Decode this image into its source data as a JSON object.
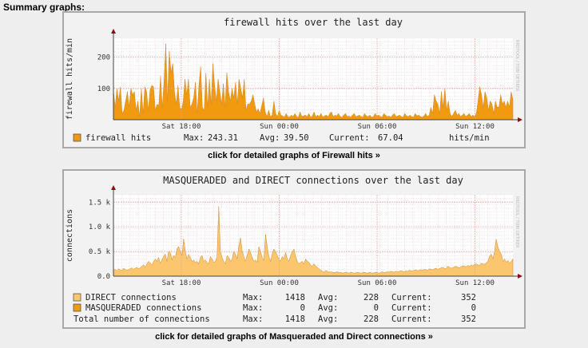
{
  "page": {
    "heading": "Summary graphs:"
  },
  "graph1": {
    "watermark": "RRDTOOL / TOBI OETIKER",
    "chart_data": {
      "type": "area",
      "title": "firewall hits over the last day",
      "ylabel": "firewall hits/min",
      "ylim": [
        0,
        260
      ],
      "yticks": [
        {
          "v": 100,
          "label": "100"
        },
        {
          "v": 200,
          "label": "200"
        }
      ],
      "xticks": [
        "Sat 18:00",
        "Sun 00:00",
        "Sun 06:00",
        "Sun 12:00"
      ],
      "grid": true,
      "series": [
        {
          "name": "firewall hits",
          "color": "#f19a10",
          "values": [
            95,
            40,
            100,
            60,
            105,
            20,
            30,
            60,
            90,
            40,
            100,
            80,
            90,
            30,
            60,
            10,
            100,
            20,
            105,
            90,
            30,
            95,
            110,
            105,
            30,
            50,
            45,
            140,
            40,
            120,
            243,
            60,
            220,
            150,
            180,
            90,
            50,
            110,
            40,
            30,
            60,
            130,
            80,
            130,
            40,
            50,
            70,
            120,
            20,
            110,
            170,
            40,
            30,
            150,
            40,
            130,
            50,
            180,
            110,
            60,
            130,
            90,
            50,
            115,
            40,
            150,
            90,
            60,
            100,
            70,
            120,
            50,
            130,
            100,
            70,
            130,
            30,
            50,
            50,
            60,
            80,
            50,
            25,
            35,
            20,
            45,
            70,
            25,
            10,
            30,
            10,
            15,
            60,
            20,
            10,
            30,
            15,
            12,
            8,
            20,
            10,
            8,
            15,
            10,
            20,
            10,
            8,
            25,
            10,
            12,
            15,
            10,
            20,
            8,
            12,
            25,
            10,
            15,
            10,
            20,
            8,
            12,
            15,
            10,
            20,
            25,
            10,
            15,
            12,
            20,
            10,
            8,
            15,
            20,
            10,
            12,
            8,
            15,
            20,
            10,
            12,
            15,
            10,
            8,
            20,
            12,
            10,
            15,
            8,
            10,
            20,
            12,
            15,
            10,
            8,
            20,
            15,
            10,
            12,
            8,
            15,
            20,
            10,
            12,
            15,
            10,
            8,
            20,
            12,
            10,
            15,
            10,
            8,
            20,
            12,
            15,
            10,
            8,
            12,
            20,
            10,
            15,
            40,
            20,
            80,
            60,
            50,
            20,
            90,
            40,
            100,
            30,
            60,
            20,
            10,
            20,
            30,
            15,
            20,
            10,
            15,
            20,
            10,
            15,
            20,
            10,
            15,
            10,
            20,
            60,
            105,
            80,
            40,
            90,
            70,
            30,
            60,
            50,
            20,
            60,
            40,
            40,
            80,
            50,
            60,
            40,
            60,
            40,
            90,
            65
          ],
          "legend_stats": {
            "max": "243.31",
            "avg": "39.50",
            "current": "67.04",
            "unit": "hits/min"
          }
        }
      ]
    },
    "legend": {
      "series_label": "firewall hits",
      "max_label": "Max:",
      "max_value": "243.31",
      "avg_label": "Avg:",
      "avg_value": "39.50",
      "cur_label": "Current:",
      "cur_value": "67.04",
      "unit": "hits/min"
    },
    "link": "click for detailed graphs of Firewall hits »"
  },
  "graph2": {
    "watermark": "RRDTOOL / TOBI OETIKER",
    "chart_data": {
      "type": "area",
      "title": "MASQUERADED and DIRECT connections over the last day",
      "ylabel": "connections",
      "ylim": [
        0,
        1650
      ],
      "yticks": [
        {
          "v": 0,
          "label": "0.0"
        },
        {
          "v": 500,
          "label": "0.5 k"
        },
        {
          "v": 1000,
          "label": "1.0 k"
        },
        {
          "v": 1500,
          "label": "1.5 k"
        }
      ],
      "xticks": [
        "Sat 18:00",
        "Sun 00:00",
        "Sun 06:00",
        "Sun 12:00"
      ],
      "grid": true,
      "series": [
        {
          "name": "DIRECT connections",
          "color": "#fcc66e",
          "values": [
            120,
            140,
            110,
            150,
            130,
            110,
            160,
            140,
            120,
            130,
            150,
            170,
            140,
            160,
            180,
            150,
            170,
            200,
            230,
            180,
            250,
            300,
            270,
            220,
            300,
            350,
            300,
            380,
            260,
            330,
            400,
            450,
            300,
            500,
            480,
            330,
            420,
            380,
            550,
            600,
            500,
            420,
            760,
            500,
            350,
            440,
            380,
            300,
            330,
            280,
            300,
            250,
            380,
            420,
            300,
            330,
            280,
            250,
            400,
            350,
            280,
            300,
            400,
            1418,
            500,
            380,
            300,
            250,
            420,
            380,
            300,
            350,
            500,
            450,
            350,
            600,
            780,
            520,
            400,
            300,
            420,
            550,
            480,
            380,
            300,
            330,
            280,
            600,
            500,
            380,
            320,
            850,
            600,
            400,
            300,
            450,
            550,
            500,
            420,
            350,
            300,
            400,
            350,
            480,
            350,
            300,
            420,
            500,
            550,
            400,
            300,
            250,
            280,
            300,
            250,
            350,
            300,
            280,
            220,
            200,
            250,
            200,
            180,
            150,
            120,
            100,
            80,
            120,
            100,
            80,
            90,
            80,
            70,
            80,
            90,
            70,
            80,
            60,
            70,
            80,
            70,
            60,
            80,
            70,
            60,
            70,
            80,
            70,
            60,
            70,
            80,
            70,
            60,
            80,
            70,
            60,
            70,
            80,
            70,
            60,
            80,
            90,
            70,
            80,
            90,
            80,
            100,
            90,
            80,
            100,
            90,
            100,
            110,
            100,
            90,
            110,
            100,
            120,
            110,
            100,
            120,
            130,
            110,
            120,
            130,
            120,
            140,
            130,
            120,
            150,
            140,
            130,
            150,
            160,
            140,
            150,
            170,
            180,
            160,
            150,
            200,
            180,
            160,
            170,
            190,
            200,
            180,
            170,
            190,
            210,
            200,
            190,
            220,
            200,
            230,
            210,
            240,
            250,
            230,
            220,
            260,
            250,
            240,
            270,
            300,
            400,
            450,
            350,
            500,
            750,
            600,
            500,
            450,
            300,
            350,
            280,
            320,
            260,
            300,
            350
          ],
          "legend_stats": {
            "max": "1418",
            "avg": "228",
            "current": "352"
          }
        },
        {
          "name": "MASQUERADED connections",
          "color": "#f19a10",
          "values": [
            0
          ],
          "legend_stats": {
            "max": "0",
            "avg": "0",
            "current": "0"
          }
        }
      ]
    },
    "legend": {
      "rows": [
        {
          "label": "DIRECT connections",
          "max_label": "Max:",
          "max": "1418",
          "avg_label": "Avg:",
          "avg": "228",
          "cur_label": "Current:",
          "cur": "352"
        },
        {
          "label": "MASQUERADED connections",
          "max_label": "Max:",
          "max": "0",
          "avg_label": "Avg:",
          "avg": "0",
          "cur_label": "Current:",
          "cur": "0"
        },
        {
          "label": "Total number of connections",
          "max_label": "Max:",
          "max": "1418",
          "avg_label": "Avg:",
          "avg": "228",
          "cur_label": "Current:",
          "cur": "352"
        }
      ]
    },
    "link": "click for detailed graphs of Masqueraded and Direct connections »"
  }
}
